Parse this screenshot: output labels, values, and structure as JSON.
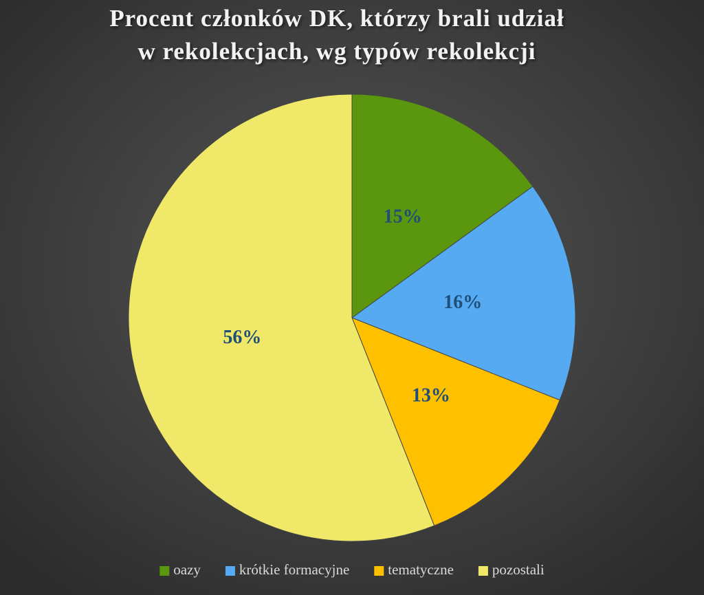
{
  "chart_data": {
    "type": "pie",
    "title": [
      "Procent członków DK, którzy brali udział",
      "w rekolekcjach, wg typów rekolekcji"
    ],
    "categories": [
      "oazy",
      "krótkie formacyjne",
      "tematyczne",
      "pozostali"
    ],
    "values": [
      15,
      16,
      13,
      56
    ],
    "value_labels": [
      "15%",
      "16%",
      "13%",
      "56%"
    ],
    "colors": [
      "#5a960e",
      "#55aaf2",
      "#ffc000",
      "#f0e868"
    ],
    "legend": "bottom"
  }
}
